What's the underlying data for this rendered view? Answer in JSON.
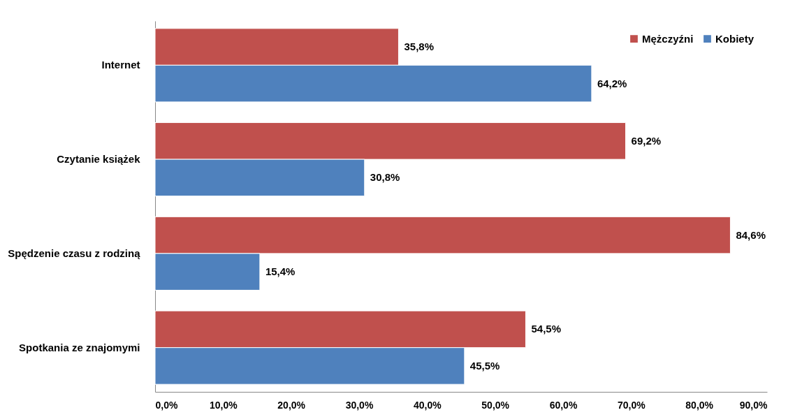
{
  "chart_data": {
    "type": "bar",
    "orientation": "horizontal",
    "categories": [
      "Internet",
      "Czytanie książek",
      "Spędzenie czasu z rodziną",
      "Spotkania ze znajomymi"
    ],
    "series": [
      {
        "name": "Mężczyźni",
        "color": "#c0504d",
        "values": [
          35.8,
          69.2,
          84.6,
          54.5
        ],
        "value_labels": [
          "35,8%",
          "69,2%",
          "84,6%",
          "54,5%"
        ]
      },
      {
        "name": "Kobiety",
        "color": "#4f81bd",
        "values": [
          64.2,
          30.8,
          15.4,
          45.5
        ],
        "value_labels": [
          "64,2%",
          "30,8%",
          "15,4%",
          "45,5%"
        ]
      }
    ],
    "xlim": [
      0,
      90
    ],
    "xticks": [
      {
        "value": 0,
        "label": "0,0%"
      },
      {
        "value": 10,
        "label": "10,0%"
      },
      {
        "value": 20,
        "label": "20,0%"
      },
      {
        "value": 30,
        "label": "30,0%"
      },
      {
        "value": 40,
        "label": "40,0%"
      },
      {
        "value": 50,
        "label": "50,0%"
      },
      {
        "value": 60,
        "label": "60,0%"
      },
      {
        "value": 70,
        "label": "70,0%"
      },
      {
        "value": 80,
        "label": "80,0%"
      },
      {
        "value": 90,
        "label": "90,0%"
      }
    ],
    "grid": false,
    "legend": "top right"
  }
}
